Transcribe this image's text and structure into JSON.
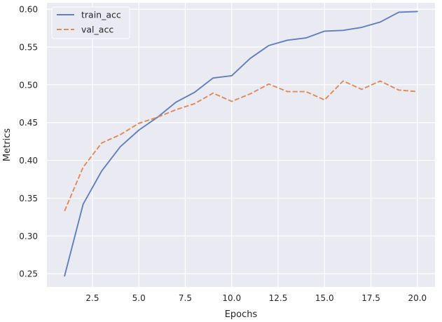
{
  "chart_data": {
    "type": "line",
    "xlabel": "Epochs",
    "ylabel": "Metrics",
    "xlim": [
      0.05,
      20.95
    ],
    "ylim": [
      0.2325,
      0.6085
    ],
    "xticks": [
      2.5,
      5.0,
      7.5,
      10.0,
      12.5,
      15.0,
      17.5,
      20.0
    ],
    "xtick_labels": [
      "2.5",
      "5.0",
      "7.5",
      "10.0",
      "12.5",
      "15.0",
      "17.5",
      "20.0"
    ],
    "yticks": [
      0.25,
      0.3,
      0.35,
      0.4,
      0.45,
      0.5,
      0.55,
      0.6
    ],
    "ytick_labels": [
      "0.25",
      "0.30",
      "0.35",
      "0.40",
      "0.45",
      "0.50",
      "0.55",
      "0.60"
    ],
    "grid": true,
    "legend_position": "top-left",
    "x": [
      1,
      2,
      3,
      4,
      5,
      6,
      7,
      8,
      9,
      10,
      11,
      12,
      13,
      14,
      15,
      16,
      17,
      18,
      19,
      20
    ],
    "series": [
      {
        "name": "train_acc",
        "style": "solid",
        "color": "#5f7fbf",
        "values": [
          0.247,
          0.342,
          0.386,
          0.418,
          0.44,
          0.457,
          0.477,
          0.49,
          0.509,
          0.512,
          0.535,
          0.552,
          0.559,
          0.562,
          0.571,
          0.572,
          0.576,
          0.583,
          0.596,
          0.597
        ]
      },
      {
        "name": "val_acc",
        "style": "dashed",
        "color": "#e08a55",
        "values": [
          0.333,
          0.391,
          0.423,
          0.434,
          0.449,
          0.457,
          0.467,
          0.475,
          0.489,
          0.478,
          0.488,
          0.501,
          0.491,
          0.491,
          0.48,
          0.505,
          0.494,
          0.505,
          0.493,
          0.491
        ]
      }
    ]
  }
}
